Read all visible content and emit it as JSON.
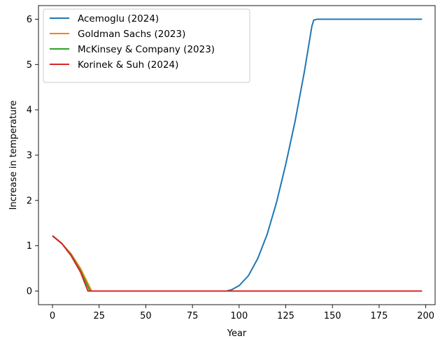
{
  "chart_data": {
    "type": "line",
    "title": "",
    "xlabel": "Year",
    "ylabel": "Increase in temperature",
    "xlim": [
      -7.5,
      205
    ],
    "ylim": [
      -0.3,
      6.3
    ],
    "xticks": [
      0,
      25,
      50,
      75,
      100,
      125,
      150,
      175,
      200
    ],
    "yticks": [
      0,
      1,
      2,
      3,
      4,
      5,
      6
    ],
    "grid": false,
    "legend_position": "top-left",
    "series": [
      {
        "name": "Acemoglu (2024)",
        "color": "#1f77b4",
        "points": [
          [
            0,
            1.22
          ],
          [
            5,
            1.05
          ],
          [
            10,
            0.8
          ],
          [
            15,
            0.45
          ],
          [
            20,
            0.02
          ],
          [
            21,
            0
          ],
          [
            90,
            0
          ],
          [
            93,
            0
          ],
          [
            96,
            0.03
          ],
          [
            100,
            0.12
          ],
          [
            105,
            0.34
          ],
          [
            110,
            0.72
          ],
          [
            115,
            1.25
          ],
          [
            120,
            1.95
          ],
          [
            125,
            2.8
          ],
          [
            130,
            3.75
          ],
          [
            135,
            4.85
          ],
          [
            139,
            5.85
          ],
          [
            140,
            5.98
          ],
          [
            142,
            6.0
          ],
          [
            198,
            6.0
          ]
        ]
      },
      {
        "name": "Goldman Sachs (2023)",
        "color": "#ff7f0e",
        "points": [
          [
            0,
            1.22
          ],
          [
            5,
            1.05
          ],
          [
            10,
            0.82
          ],
          [
            15,
            0.5
          ],
          [
            20,
            0.08
          ],
          [
            21,
            0
          ],
          [
            198,
            0
          ]
        ]
      },
      {
        "name": "McKinsey & Company (2023)",
        "color": "#2ca02c",
        "points": [
          [
            0,
            1.22
          ],
          [
            5,
            1.05
          ],
          [
            10,
            0.8
          ],
          [
            15,
            0.45
          ],
          [
            20,
            0.01
          ],
          [
            21,
            0
          ],
          [
            198,
            0
          ]
        ]
      },
      {
        "name": "Korinek & Suh (2024)",
        "color": "#d62728",
        "points": [
          [
            0,
            1.22
          ],
          [
            5,
            1.05
          ],
          [
            10,
            0.78
          ],
          [
            15,
            0.42
          ],
          [
            19,
            0.0
          ],
          [
            198,
            0
          ]
        ]
      }
    ]
  }
}
